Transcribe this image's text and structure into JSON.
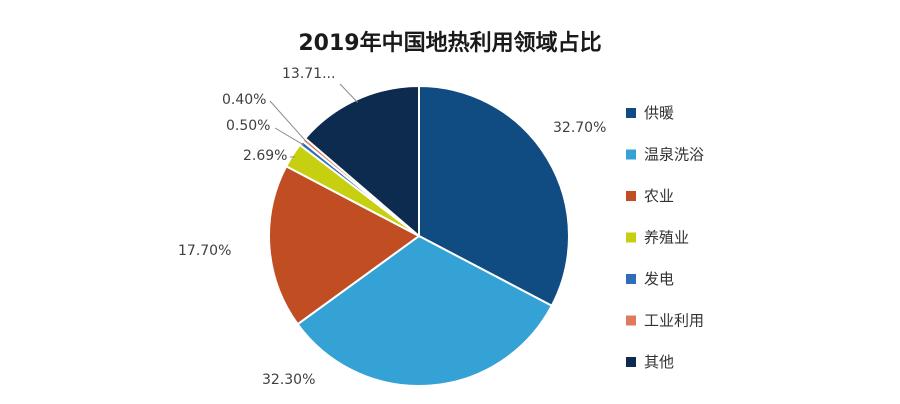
{
  "chart_data": {
    "type": "pie",
    "title": "2019年中国地热利用领域占比",
    "slices": [
      {
        "name": "供暖",
        "value": 32.7,
        "label": "32.70%",
        "color": "#104c81"
      },
      {
        "name": "温泉洗浴",
        "value": 32.3,
        "label": "32.30%",
        "color": "#34a2d4"
      },
      {
        "name": "农业",
        "value": 17.7,
        "label": "17.70%",
        "color": "#c14d23"
      },
      {
        "name": "养殖业",
        "value": 2.69,
        "label": "2.69%",
        "color": "#c6cf10"
      },
      {
        "name": "发电",
        "value": 0.5,
        "label": "0.50%",
        "color": "#2e6db8"
      },
      {
        "name": "工业利用",
        "value": 0.4,
        "label": "0.40%",
        "color": "#e07a5a"
      },
      {
        "name": "其他",
        "value": 13.71,
        "label": "13.71...",
        "color": "#0d2a4f"
      }
    ],
    "legend_position": "right"
  }
}
